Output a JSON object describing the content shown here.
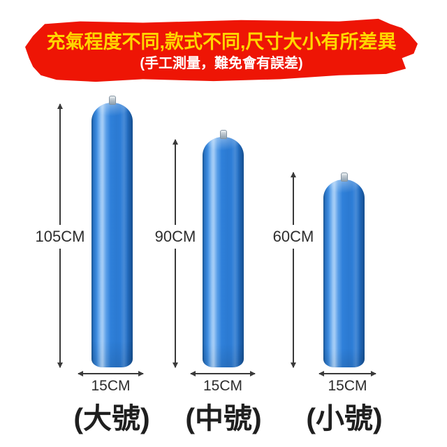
{
  "banner": {
    "title": "充氣程度不同,款式不同,尺寸大小有所差異",
    "subtitle": "(手工測量，難免會有誤差)"
  },
  "products": [
    {
      "name": "(大號)",
      "height_label": "105CM",
      "width_label": "15CM"
    },
    {
      "name": "(中號)",
      "height_label": "90CM",
      "width_label": "15CM"
    },
    {
      "name": "(小號)",
      "height_label": "60CM",
      "width_label": "15CM"
    }
  ],
  "colors": {
    "banner_background": "#ee1505",
    "banner_title": "#ffd600",
    "banner_subtitle": "#ffffff",
    "tube_blue": "#2e7fd9",
    "dimension_text": "#2d2d2d",
    "page_background": "#ffffff"
  }
}
